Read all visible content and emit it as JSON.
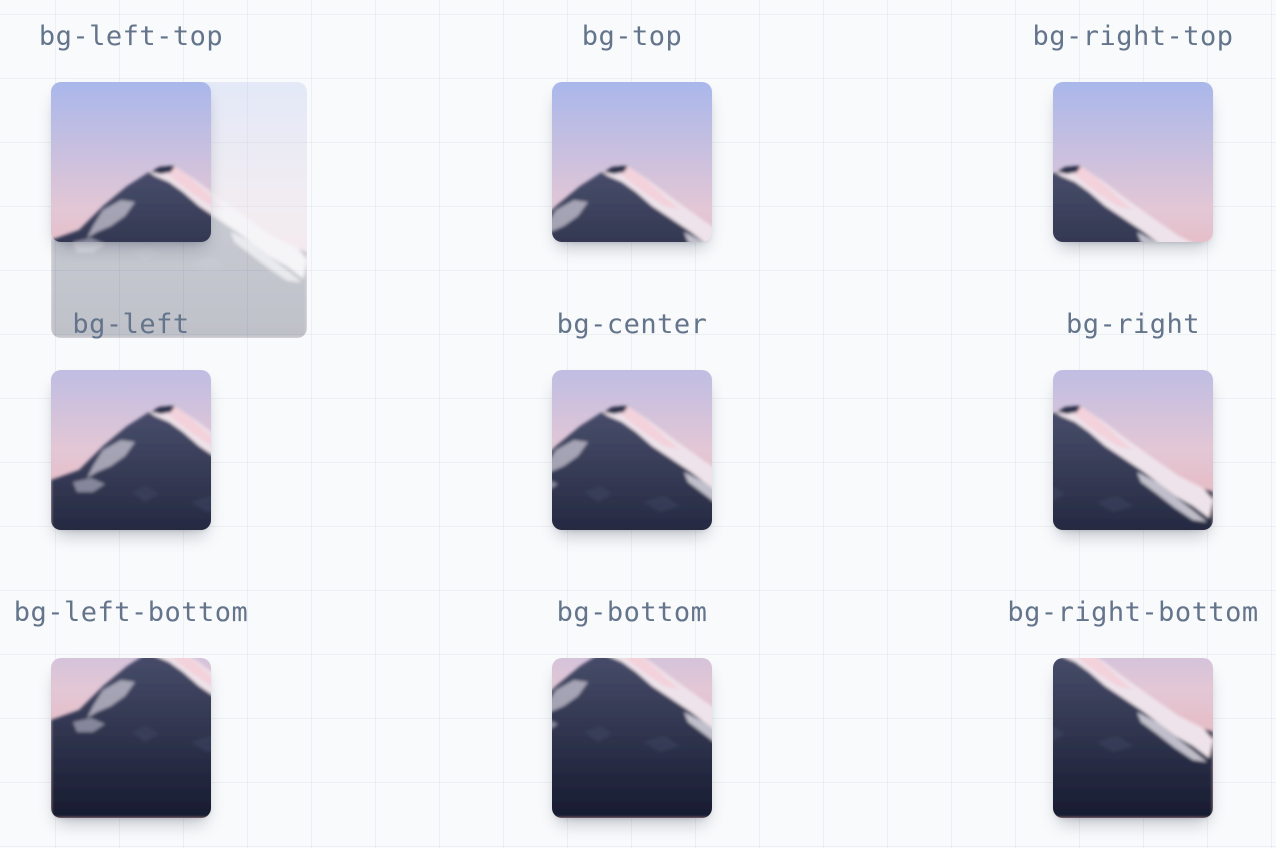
{
  "image": {
    "description": "mountain peak at dusk",
    "sky_top": "#a9b7eb",
    "sky_mid": "#e3c7d5",
    "sky_horizon": "#eba6a6",
    "rock_light": "#efe9ee",
    "rock_dark": "#1c2138"
  },
  "tiles": [
    {
      "label": "bg-left-top"
    },
    {
      "label": "bg-top"
    },
    {
      "label": "bg-right-top"
    },
    {
      "label": "bg-left"
    },
    {
      "label": "bg-center"
    },
    {
      "label": "bg-right"
    },
    {
      "label": "bg-left-bottom"
    },
    {
      "label": "bg-bottom"
    },
    {
      "label": "bg-right-bottom"
    }
  ]
}
